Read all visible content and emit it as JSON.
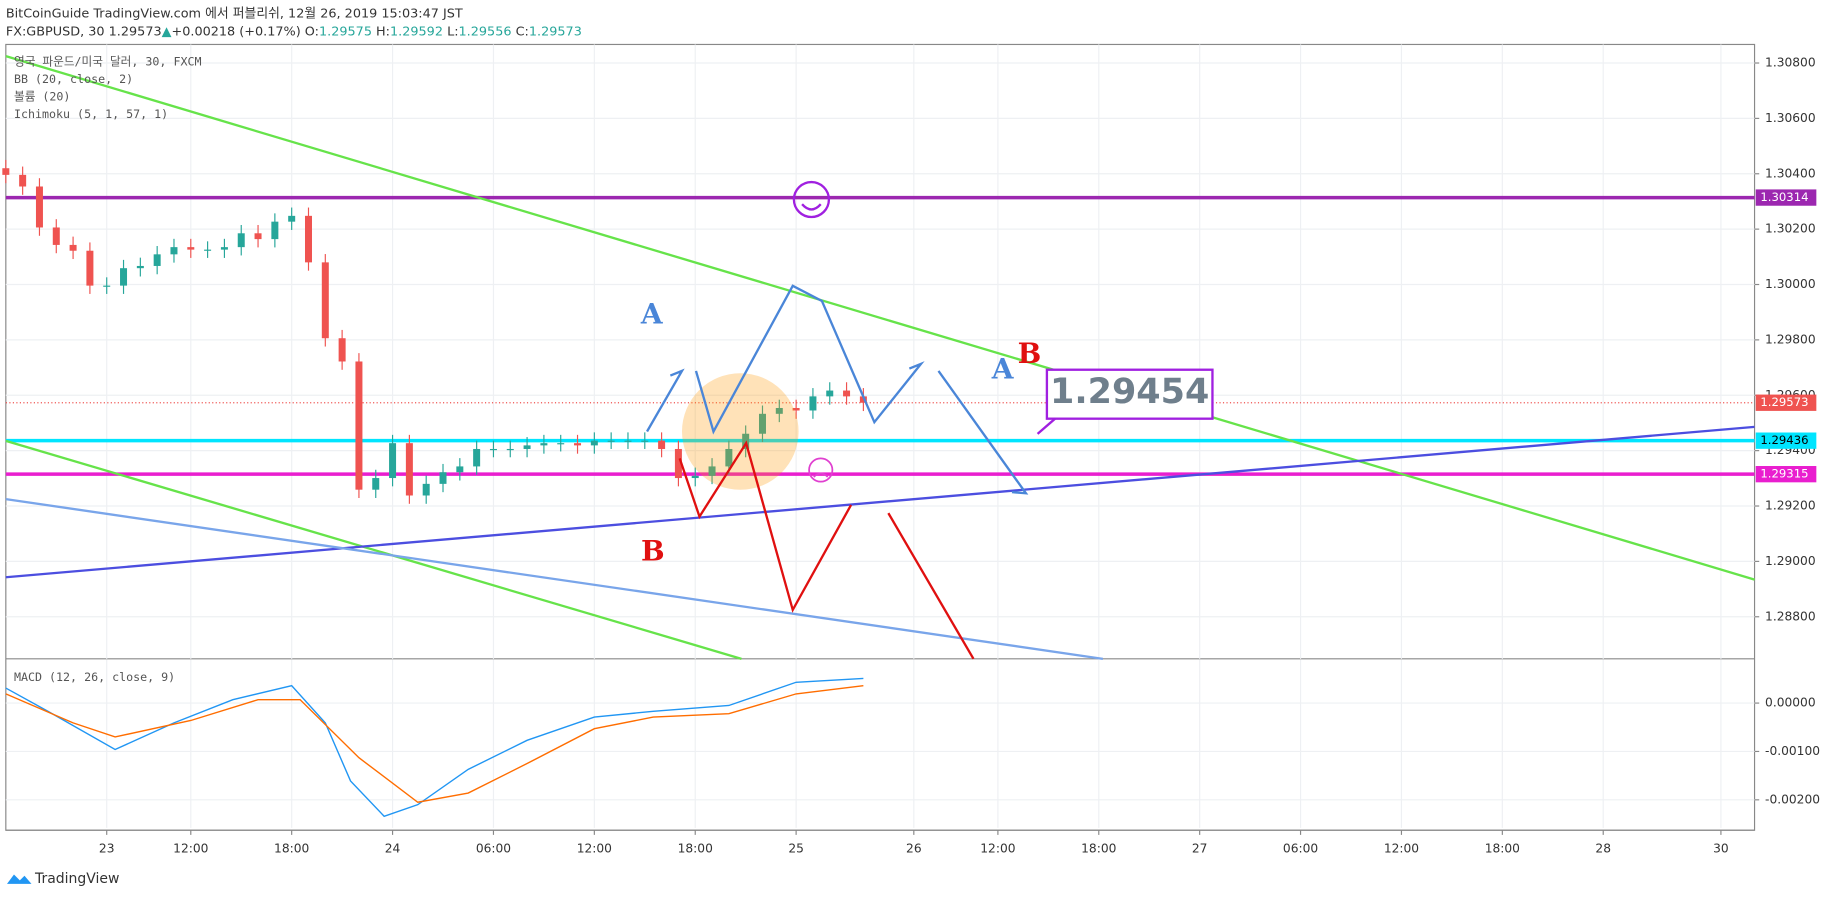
{
  "chart_data": {
    "type": "candlestick",
    "published": "BitCoinGuide TradingView.com 에서 퍼블리쉬, 12월 26, 2019 15:03:47 JST",
    "symbol": "FX:GBPUSD, 30",
    "last": 1.29573,
    "change_arrow": "▲",
    "change": "+0.00218 (+0.17%)",
    "ohlc_labels": [
      "O:",
      "H:",
      "L:",
      "C:"
    ],
    "ohlc_values": [
      1.29575,
      1.29592,
      1.29556,
      1.29573
    ],
    "title": "영국 파운드/미국 달러, 30, FXCM",
    "indicators": [
      "BB (20, close, 2)",
      "볼륨 (20)",
      "Ichimoku (5, 1, 57, 1)"
    ],
    "up_color": "#26a69a",
    "down_color": "#ef5350",
    "x": [
      0,
      2,
      4,
      6,
      8,
      10,
      12,
      14,
      16,
      18,
      20,
      22,
      24,
      26,
      28,
      30,
      32,
      34,
      36,
      38,
      40,
      42,
      44,
      46,
      48,
      50,
      52,
      54,
      56,
      58,
      60,
      62,
      64,
      66,
      68,
      70,
      72,
      74,
      76,
      78,
      80,
      82,
      84,
      86,
      88,
      90,
      92,
      94,
      96,
      98,
      100,
      102
    ],
    "open": [
      1.3042,
      1.30396,
      1.30354,
      1.30206,
      1.30143,
      1.30122,
      1.29996,
      1.29996,
      1.30059,
      1.30067,
      1.30109,
      1.30135,
      1.30126,
      1.30126,
      1.30135,
      1.30185,
      1.30164,
      1.30227,
      1.30248,
      1.3008,
      1.29806,
      1.29722,
      1.29259,
      1.29301,
      1.29427,
      1.29238,
      1.2928,
      1.29322,
      1.29343,
      1.29406,
      1.29406,
      1.29406,
      1.29419,
      1.29427,
      1.29427,
      1.29419,
      1.29436,
      1.29436,
      1.29436,
      1.29436,
      1.29406,
      1.29301,
      1.29309,
      1.29343,
      1.29406,
      1.29461,
      1.29533,
      1.29554,
      1.29545,
      1.29596,
      1.29617,
      1.29596
    ],
    "high": [
      1.3045,
      1.30426,
      1.30384,
      1.30236,
      1.30173,
      1.30152,
      1.30026,
      1.30089,
      1.30097,
      1.30139,
      1.30165,
      1.30165,
      1.30156,
      1.30165,
      1.30215,
      1.30215,
      1.30257,
      1.30278,
      1.30278,
      1.3011,
      1.29836,
      1.29752,
      1.29331,
      1.29457,
      1.29457,
      1.2931,
      1.29352,
      1.29373,
      1.29436,
      1.29436,
      1.29436,
      1.29449,
      1.29457,
      1.29457,
      1.29457,
      1.29466,
      1.29466,
      1.29466,
      1.29466,
      1.29466,
      1.29436,
      1.29339,
      1.29373,
      1.29436,
      1.29491,
      1.29563,
      1.29584,
      1.29584,
      1.29626,
      1.29647,
      1.29647,
      1.29626
    ],
    "low": [
      1.30366,
      1.30324,
      1.30176,
      1.30113,
      1.30092,
      1.29966,
      1.29966,
      1.29966,
      1.30029,
      1.30037,
      1.30079,
      1.30096,
      1.30096,
      1.30096,
      1.30105,
      1.30134,
      1.30134,
      1.30197,
      1.3005,
      1.29776,
      1.29692,
      1.29229,
      1.29229,
      1.29271,
      1.29208,
      1.29208,
      1.2925,
      1.29292,
      1.29313,
      1.29376,
      1.29376,
      1.29376,
      1.29389,
      1.29397,
      1.29389,
      1.29389,
      1.29406,
      1.29406,
      1.29406,
      1.29376,
      1.29271,
      1.29271,
      1.29279,
      1.29313,
      1.29376,
      1.29431,
      1.29503,
      1.29515,
      1.29515,
      1.29566,
      1.29566,
      1.29543
    ],
    "close": [
      1.30396,
      1.30354,
      1.30206,
      1.30143,
      1.30122,
      1.29996,
      1.29996,
      1.30059,
      1.30067,
      1.30109,
      1.30135,
      1.30126,
      1.30126,
      1.30135,
      1.30185,
      1.30164,
      1.30227,
      1.30248,
      1.3008,
      1.29806,
      1.29722,
      1.29259,
      1.29301,
      1.29427,
      1.29238,
      1.2928,
      1.29322,
      1.29343,
      1.29406,
      1.29406,
      1.29406,
      1.29419,
      1.29427,
      1.29427,
      1.29419,
      1.29436,
      1.29436,
      1.29436,
      1.29436,
      1.29406,
      1.29301,
      1.29309,
      1.29343,
      1.29406,
      1.29461,
      1.29533,
      1.29554,
      1.29545,
      1.29596,
      1.29617,
      1.29596,
      1.29573
    ],
    "xlim": [
      0,
      208
    ],
    "xticks": [
      {
        "value": 12,
        "label": "23"
      },
      {
        "value": 22,
        "label": "12:00"
      },
      {
        "value": 34,
        "label": "18:00"
      },
      {
        "value": 46,
        "label": "24"
      },
      {
        "value": 58,
        "label": "06:00"
      },
      {
        "value": 70,
        "label": "12:00"
      },
      {
        "value": 82,
        "label": "18:00"
      },
      {
        "value": 94,
        "label": "25"
      },
      {
        "value": 108,
        "label": "26"
      },
      {
        "value": 118,
        "label": "12:00"
      },
      {
        "value": 130,
        "label": "18:00"
      },
      {
        "value": 142,
        "label": "27"
      },
      {
        "value": 154,
        "label": "06:00"
      },
      {
        "value": 166,
        "label": "12:00"
      },
      {
        "value": 178,
        "label": "18:00"
      },
      {
        "value": 190,
        "label": "28"
      },
      {
        "value": 204,
        "label": "30"
      }
    ],
    "ylim": [
      1.28648,
      1.30867
    ],
    "yticks": [
      {
        "value": 1.288,
        "label": "1.28800"
      },
      {
        "value": 1.29,
        "label": "1.29000"
      },
      {
        "value": 1.292,
        "label": "1.29200"
      },
      {
        "value": 1.294,
        "label": "1.29400"
      },
      {
        "value": 1.296,
        "label": "1.29600"
      },
      {
        "value": 1.298,
        "label": "1.29800"
      },
      {
        "value": 1.3,
        "label": "1.30000"
      },
      {
        "value": 1.302,
        "label": "1.30200"
      },
      {
        "value": 1.304,
        "label": "1.30400"
      },
      {
        "value": 1.306,
        "label": "1.30600"
      },
      {
        "value": 1.308,
        "label": "1.30800"
      }
    ],
    "grid": true,
    "levels": [
      {
        "value": 1.30314,
        "color": "#9c27b0"
      },
      {
        "value": 1.29573,
        "color": "#ef5350"
      },
      {
        "value": 1.29436,
        "color": "#00e5ff"
      },
      {
        "value": 1.29315,
        "color": "#e91ecf"
      }
    ],
    "annotations": [
      {
        "text": "A",
        "color": "#4a86d8"
      },
      {
        "text": "A",
        "color": "#4a86d8"
      },
      {
        "text": "B",
        "color": "#e01010"
      },
      {
        "text": "B",
        "color": "#e01010"
      }
    ],
    "callout": "1.29454",
    "macd": {
      "title": "MACD (12, 26, close, 9)",
      "macd_color": "#2196f3",
      "signal_color": "#ff6d00",
      "x_macd": [
        0,
        5,
        13,
        20,
        27,
        34,
        38,
        41,
        45,
        49,
        55,
        62,
        70,
        77,
        86,
        94,
        102
      ],
      "macd": [
        0.00031,
        -0.00017,
        -0.00096,
        -0.00041,
        7e-05,
        0.00036,
        -0.00041,
        -0.00161,
        -0.00234,
        -0.0021,
        -0.00137,
        -0.00077,
        -0.00029,
        -0.00017,
        -5e-05,
        0.00043,
        0.00051
      ],
      "x_signal": [
        0,
        8,
        13,
        22,
        30,
        35,
        42,
        49,
        55,
        62,
        70,
        77,
        86,
        94,
        102
      ],
      "signal": [
        0.00019,
        -0.00041,
        -0.0007,
        -0.00036,
        7e-05,
        7e-05,
        -0.00113,
        -0.00205,
        -0.00186,
        -0.00125,
        -0.00053,
        -0.00029,
        -0.00022,
        0.00019,
        0.00036
      ],
      "ylim": [
        -0.00258,
        0.00089
      ],
      "yticks": [
        {
          "value": 0,
          "label": "0.00000"
        },
        {
          "value": -0.001,
          "label": "-0.00100"
        },
        {
          "value": -0.002,
          "label": "-0.00200"
        }
      ]
    },
    "brand": "TradingView"
  }
}
